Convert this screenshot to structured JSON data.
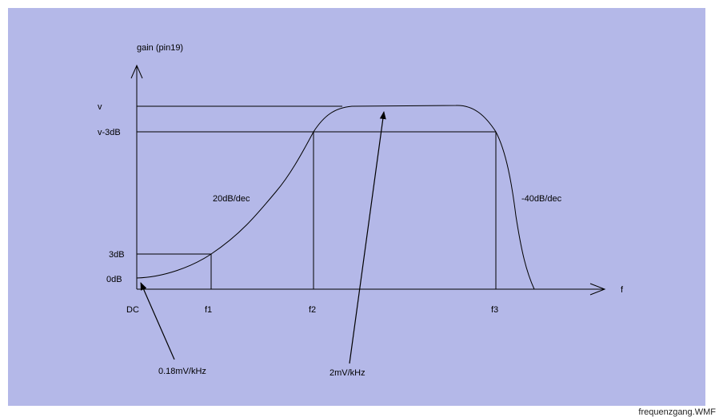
{
  "diagram": {
    "y_axis_label": "gain (pin19)",
    "x_axis_label": "f",
    "y_ticks": {
      "v": "v",
      "v_minus_3db": "v-3dB",
      "three_db": "3dB",
      "zero_db": "0dB"
    },
    "x_ticks": {
      "dc": "DC",
      "f1": "f1",
      "f2": "f2",
      "f3": "f3"
    },
    "annotations": {
      "rise_slope": "20dB/dec",
      "fall_slope": "-40dB/dec",
      "sensitivity_low": "0.18mV/kHz",
      "sensitivity_mid": "2mV/kHz"
    }
  },
  "caption": "frequenzgang.WMF"
}
